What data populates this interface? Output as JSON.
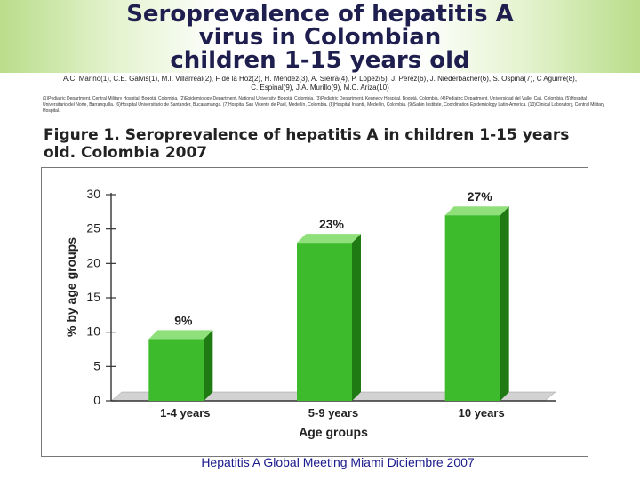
{
  "header": {
    "title_lines": [
      "Seroprevalence of hepatitis A",
      "virus in Colombian",
      "children 1-15 years old"
    ],
    "authors": "A.C. Mariño(1), C.E. Galvis(1), M.I. Villarreal(2), F de la Hoz(2), H. Méndez(3), A. Sierra(4), P. López(5), J. Pérez(6), J. Niederbacher(6), S. Ospina(7), C Aguirre(8), C. Espinal(9), J.A. Murillo(9), M.C. Ariza(10)",
    "affiliations": "(1)Pediatric Department, Central Military Hospital, Bogotá, Colombia. (2)Epidemiology Department, National University, Bogotá, Colombia. (3)Pediatric Department, Kennedy Hospital, Bogotá, Colombia. (4)Pediatric Department, Universidad del Valle, Cali, Colombia. (5)Hospital Universitario del Norte, Barranquilla. (6)Hospital Universitario de Santander, Bucaramanga. (7)Hospital San Vicente de Paúl, Medellín, Colombia. (8)Hospital Infantil, Medellín, Colombia. (9)Sabin Institute, Coordination Epidemiology Latin-America. (10)Clinical Laboratory, Central Military Hospital."
  },
  "figure": {
    "caption_line1": "Figure 1. Seroprevalence of hepatitis A in children 1-15  years",
    "caption_line2": "old. Colombia 2007"
  },
  "chart_data": {
    "type": "bar",
    "title": "Seroprevalence of hepatitis A in children 1-15 years old. Colombia 2007",
    "categories": [
      "1-4 years",
      "5-9 years",
      "10 years"
    ],
    "values": [
      9,
      23,
      27
    ],
    "data_labels": [
      "9%",
      "23%",
      "27%"
    ],
    "xlabel": "Age groups",
    "ylabel": "% by age groups",
    "ylim": [
      0,
      30
    ],
    "yticks": [
      0,
      5,
      10,
      15,
      20,
      25,
      30
    ],
    "grid": false,
    "colors": {
      "bar_front": "#3dbb2c",
      "bar_side": "#1f7a14",
      "bar_top": "#8fe07a",
      "floor": "#d2d2d2"
    }
  },
  "footer": {
    "link_text": "Hepatitis A Global Meeting Miami Diciembre 2007"
  }
}
